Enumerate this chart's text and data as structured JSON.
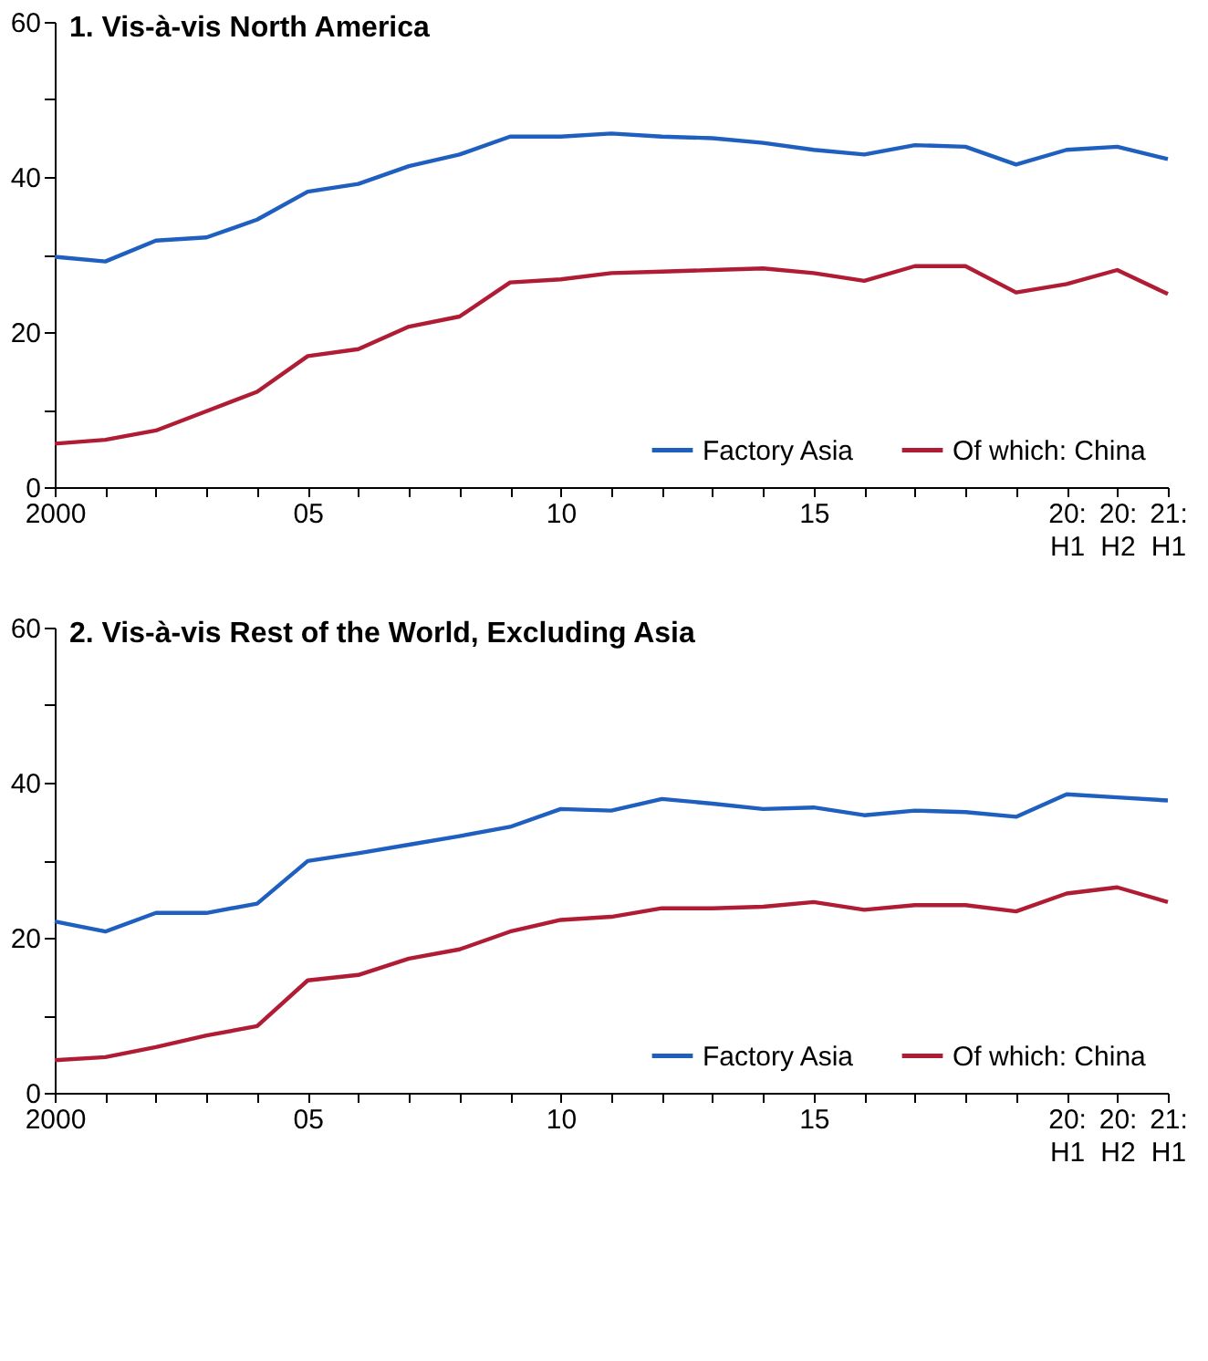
{
  "chart_data": [
    {
      "type": "line",
      "title": "1. Vis-à-vis North America",
      "categories": [
        "2000",
        null,
        null,
        null,
        null,
        "05",
        null,
        null,
        null,
        null,
        "10",
        null,
        null,
        null,
        null,
        "15",
        null,
        null,
        null,
        null,
        "20: H1",
        "20: H2",
        "21: H1"
      ],
      "ylim": [
        0,
        60
      ],
      "yticks": [
        0,
        {
          "value": 10,
          "label": null
        },
        20,
        {
          "value": 30,
          "label": null
        },
        40,
        {
          "value": 50,
          "label": null
        },
        60
      ],
      "grid": false,
      "legend": "bottom right",
      "series": [
        {
          "name": "Factory Asia",
          "color": "#1f5fbf",
          "values": [
            29.7,
            29.1,
            31.8,
            32.2,
            34.5,
            38.1,
            39.1,
            41.4,
            42.9,
            45.2,
            45.2,
            45.6,
            45.2,
            45.0,
            44.4,
            43.5,
            42.9,
            44.1,
            43.9,
            41.6,
            43.5,
            43.9,
            42.3
          ]
        },
        {
          "name": "Of which: China",
          "color": "#b01c34",
          "values": [
            5.6,
            6.1,
            7.3,
            9.8,
            12.3,
            16.9,
            17.8,
            20.7,
            22.0,
            26.4,
            26.8,
            27.6,
            27.8,
            28.0,
            28.2,
            27.6,
            26.6,
            28.5,
            28.5,
            25.1,
            26.2,
            28.0,
            24.9
          ]
        }
      ]
    },
    {
      "type": "line",
      "title": "2. Vis-à-vis Rest of the World, Excluding Asia",
      "categories": [
        "2000",
        null,
        null,
        null,
        null,
        "05",
        null,
        null,
        null,
        null,
        "10",
        null,
        null,
        null,
        null,
        "15",
        null,
        null,
        null,
        null,
        "20: H1",
        "20: H2",
        "21: H1"
      ],
      "ylim": [
        0,
        60
      ],
      "yticks": [
        0,
        {
          "value": 10,
          "label": null
        },
        20,
        {
          "value": 30,
          "label": null
        },
        40,
        {
          "value": 50,
          "label": null
        },
        60
      ],
      "grid": false,
      "legend": "bottom right",
      "series": [
        {
          "name": "Factory Asia",
          "color": "#1f5fbf",
          "values": [
            22.1,
            20.8,
            23.2,
            23.2,
            24.4,
            29.9,
            30.9,
            32.0,
            33.1,
            34.3,
            36.6,
            36.4,
            37.9,
            37.3,
            36.6,
            36.8,
            35.8,
            36.4,
            36.2,
            35.6,
            38.5,
            38.1,
            37.7
          ]
        },
        {
          "name": "Of which: China",
          "color": "#b01c34",
          "values": [
            4.2,
            4.6,
            5.9,
            7.4,
            8.6,
            14.5,
            15.2,
            17.3,
            18.5,
            20.8,
            22.3,
            22.7,
            23.8,
            23.8,
            24.0,
            24.6,
            23.6,
            24.2,
            24.2,
            23.4,
            25.7,
            26.5,
            24.6
          ]
        }
      ]
    }
  ]
}
